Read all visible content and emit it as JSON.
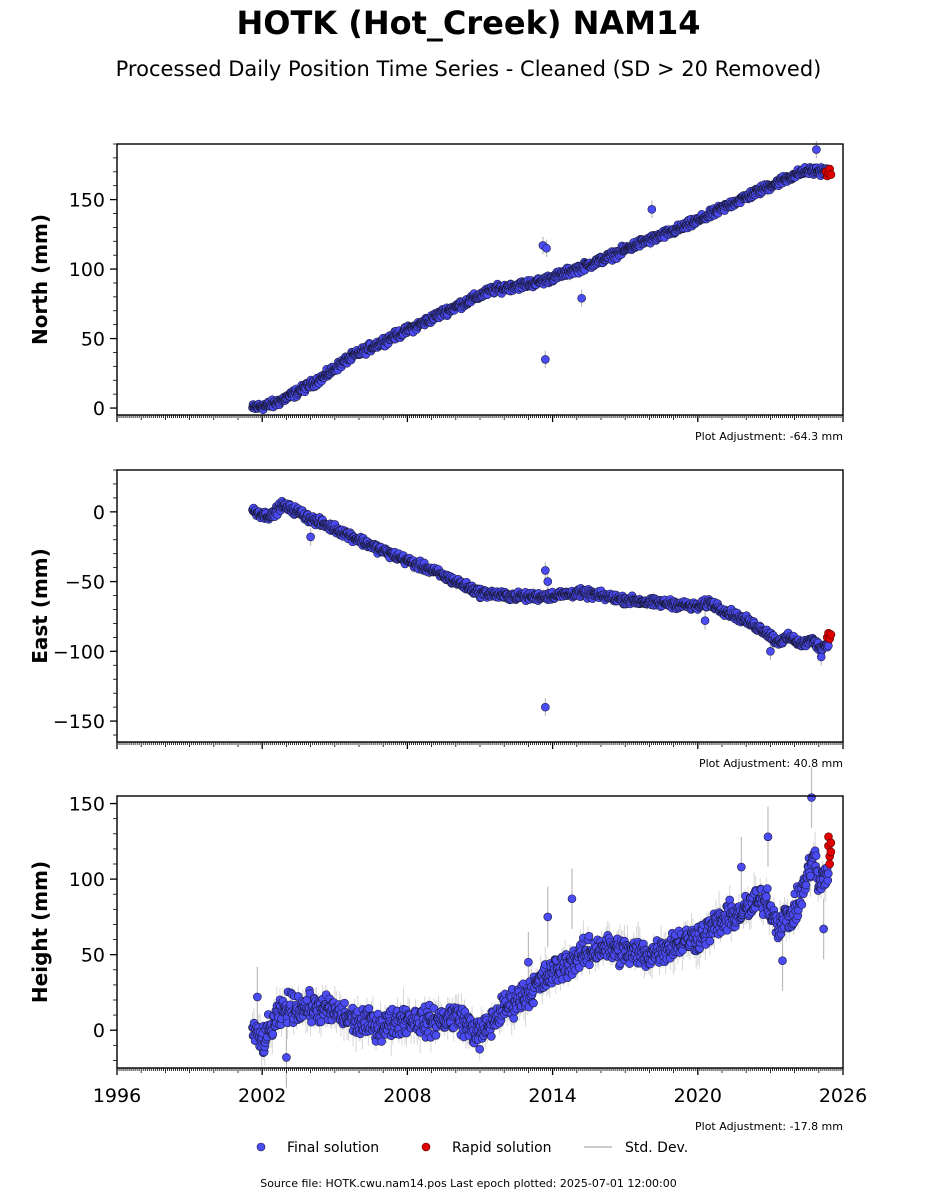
{
  "header": {
    "title": "HOTK (Hot_Creek) NAM14",
    "subtitle": "Processed Daily Position Time Series - Cleaned (SD > 20 Removed)"
  },
  "footer": {
    "source": "Source file: HOTK.cwu.nam14.pos  Last epoch plotted: 2025-07-01 12:00:00"
  },
  "legend": {
    "final": "Final solution",
    "rapid": "Rapid solution",
    "std": "Std. Dev."
  },
  "colors": {
    "final": "#4b4bf5",
    "rapid": "#e00000",
    "marker_edge": "#1a1a3a",
    "std": "#bbbbbb"
  },
  "chart_data": [
    {
      "type": "scatter",
      "ylabel": "North (mm)",
      "adjustment": "Plot Adjustment: -64.3 mm",
      "xlim": [
        1996,
        2026
      ],
      "ylim": [
        -5,
        190
      ],
      "yticks": [
        0,
        50,
        100,
        150
      ],
      "xticks": [
        1996,
        2002,
        2008,
        2014,
        2020,
        2026
      ],
      "show_x_tick_labels": false,
      "final_trend": [
        [
          2001.6,
          0
        ],
        [
          2002.5,
          3
        ],
        [
          2003.5,
          12
        ],
        [
          2004.5,
          22
        ],
        [
          2005.5,
          35
        ],
        [
          2006.5,
          44
        ],
        [
          2007.5,
          52
        ],
        [
          2008.5,
          60
        ],
        [
          2009.5,
          69
        ],
        [
          2010.5,
          77
        ],
        [
          2011.5,
          85
        ],
        [
          2012.5,
          88
        ],
        [
          2013.5,
          91
        ],
        [
          2014.5,
          97
        ],
        [
          2015.5,
          103
        ],
        [
          2016.5,
          110
        ],
        [
          2017.5,
          118
        ],
        [
          2018.5,
          124
        ],
        [
          2019.5,
          131
        ],
        [
          2020.5,
          139
        ],
        [
          2021.5,
          148
        ],
        [
          2022.5,
          156
        ],
        [
          2023.5,
          164
        ],
        [
          2024.3,
          170
        ],
        [
          2025.0,
          171
        ],
        [
          2025.4,
          170
        ]
      ],
      "noise": 2.5,
      "final_outliers": [
        [
          2013.7,
          35
        ],
        [
          2013.6,
          117
        ],
        [
          2013.75,
          115
        ],
        [
          2015.2,
          79
        ],
        [
          2018.1,
          143
        ],
        [
          2024.9,
          186
        ]
      ],
      "rapid_points": [
        [
          2025.3,
          170
        ],
        [
          2025.35,
          167
        ],
        [
          2025.4,
          169
        ],
        [
          2025.45,
          172
        ],
        [
          2025.5,
          168
        ]
      ]
    },
    {
      "type": "scatter",
      "ylabel": "East (mm)",
      "adjustment": "Plot Adjustment: 40.8 mm",
      "xlim": [
        1996,
        2026
      ],
      "ylim": [
        -165,
        30
      ],
      "yticks": [
        0,
        -50,
        -100,
        -150
      ],
      "xticks": [
        1996,
        2002,
        2008,
        2014,
        2020,
        2026
      ],
      "show_x_tick_labels": false,
      "final_trend": [
        [
          2001.6,
          1
        ],
        [
          2002.0,
          -2
        ],
        [
          2002.4,
          -3
        ],
        [
          2002.8,
          5
        ],
        [
          2003.5,
          0
        ],
        [
          2004.0,
          -5
        ],
        [
          2005.0,
          -12
        ],
        [
          2006.0,
          -20
        ],
        [
          2007.0,
          -28
        ],
        [
          2008.0,
          -35
        ],
        [
          2009.0,
          -42
        ],
        [
          2010.0,
          -50
        ],
        [
          2011.0,
          -58
        ],
        [
          2012.0,
          -60
        ],
        [
          2013.0,
          -61
        ],
        [
          2014.0,
          -60
        ],
        [
          2015.0,
          -58
        ],
        [
          2016.0,
          -60
        ],
        [
          2017.0,
          -63
        ],
        [
          2018.0,
          -65
        ],
        [
          2019.0,
          -66
        ],
        [
          2020.0,
          -68
        ],
        [
          2020.5,
          -65
        ],
        [
          2021.0,
          -70
        ],
        [
          2022.0,
          -78
        ],
        [
          2022.8,
          -86
        ],
        [
          2023.3,
          -93
        ],
        [
          2023.8,
          -90
        ],
        [
          2024.3,
          -95
        ],
        [
          2024.8,
          -92
        ],
        [
          2025.0,
          -97
        ],
        [
          2025.4,
          -95
        ]
      ],
      "noise": 2.5,
      "final_outliers": [
        [
          2004.0,
          -18
        ],
        [
          2013.7,
          -140
        ],
        [
          2013.7,
          -42
        ],
        [
          2013.8,
          -50
        ],
        [
          2020.3,
          -78
        ],
        [
          2023.0,
          -100
        ],
        [
          2025.1,
          -104
        ]
      ],
      "rapid_points": [
        [
          2025.35,
          -90
        ],
        [
          2025.4,
          -87
        ],
        [
          2025.45,
          -91
        ],
        [
          2025.5,
          -88
        ]
      ]
    },
    {
      "type": "scatter",
      "ylabel": "Height (mm)",
      "adjustment": "Plot Adjustment: -17.8 mm",
      "xlim": [
        1996,
        2026
      ],
      "ylim": [
        -25,
        155
      ],
      "yticks": [
        0,
        50,
        100,
        150
      ],
      "xticks": [
        1996,
        2002,
        2008,
        2014,
        2020,
        2026
      ],
      "xticklabels": [
        "1996",
        "2002",
        "2008",
        "2014",
        "2020",
        "2026"
      ],
      "show_x_tick_labels": true,
      "final_trend": [
        [
          2001.6,
          0
        ],
        [
          2002.0,
          -8
        ],
        [
          2002.5,
          5
        ],
        [
          2003.0,
          15
        ],
        [
          2004.0,
          15
        ],
        [
          2005.0,
          12
        ],
        [
          2006.0,
          5
        ],
        [
          2007.0,
          3
        ],
        [
          2008.0,
          8
        ],
        [
          2009.0,
          5
        ],
        [
          2010.0,
          10
        ],
        [
          2011.0,
          -3
        ],
        [
          2011.5,
          5
        ],
        [
          2012.0,
          15
        ],
        [
          2013.0,
          25
        ],
        [
          2014.0,
          38
        ],
        [
          2015.0,
          48
        ],
        [
          2016.0,
          55
        ],
        [
          2017.0,
          52
        ],
        [
          2018.0,
          50
        ],
        [
          2019.0,
          57
        ],
        [
          2020.0,
          62
        ],
        [
          2021.0,
          72
        ],
        [
          2022.0,
          80
        ],
        [
          2022.8,
          88
        ],
        [
          2023.3,
          70
        ],
        [
          2024.0,
          78
        ],
        [
          2024.5,
          100
        ],
        [
          2024.8,
          118
        ],
        [
          2025.0,
          95
        ],
        [
          2025.4,
          105
        ]
      ],
      "noise": 8,
      "final_outliers": [
        [
          2001.8,
          22
        ],
        [
          2013.0,
          45
        ],
        [
          2013.8,
          75
        ],
        [
          2014.8,
          87
        ],
        [
          2021.8,
          108
        ],
        [
          2022.9,
          128
        ],
        [
          2023.5,
          46
        ],
        [
          2024.7,
          154
        ],
        [
          2025.2,
          67
        ],
        [
          2003.0,
          -18
        ]
      ],
      "rapid_points": [
        [
          2025.4,
          128
        ],
        [
          2025.4,
          122
        ],
        [
          2025.45,
          115
        ],
        [
          2025.45,
          110
        ],
        [
          2025.5,
          118
        ],
        [
          2025.5,
          124
        ]
      ]
    }
  ]
}
